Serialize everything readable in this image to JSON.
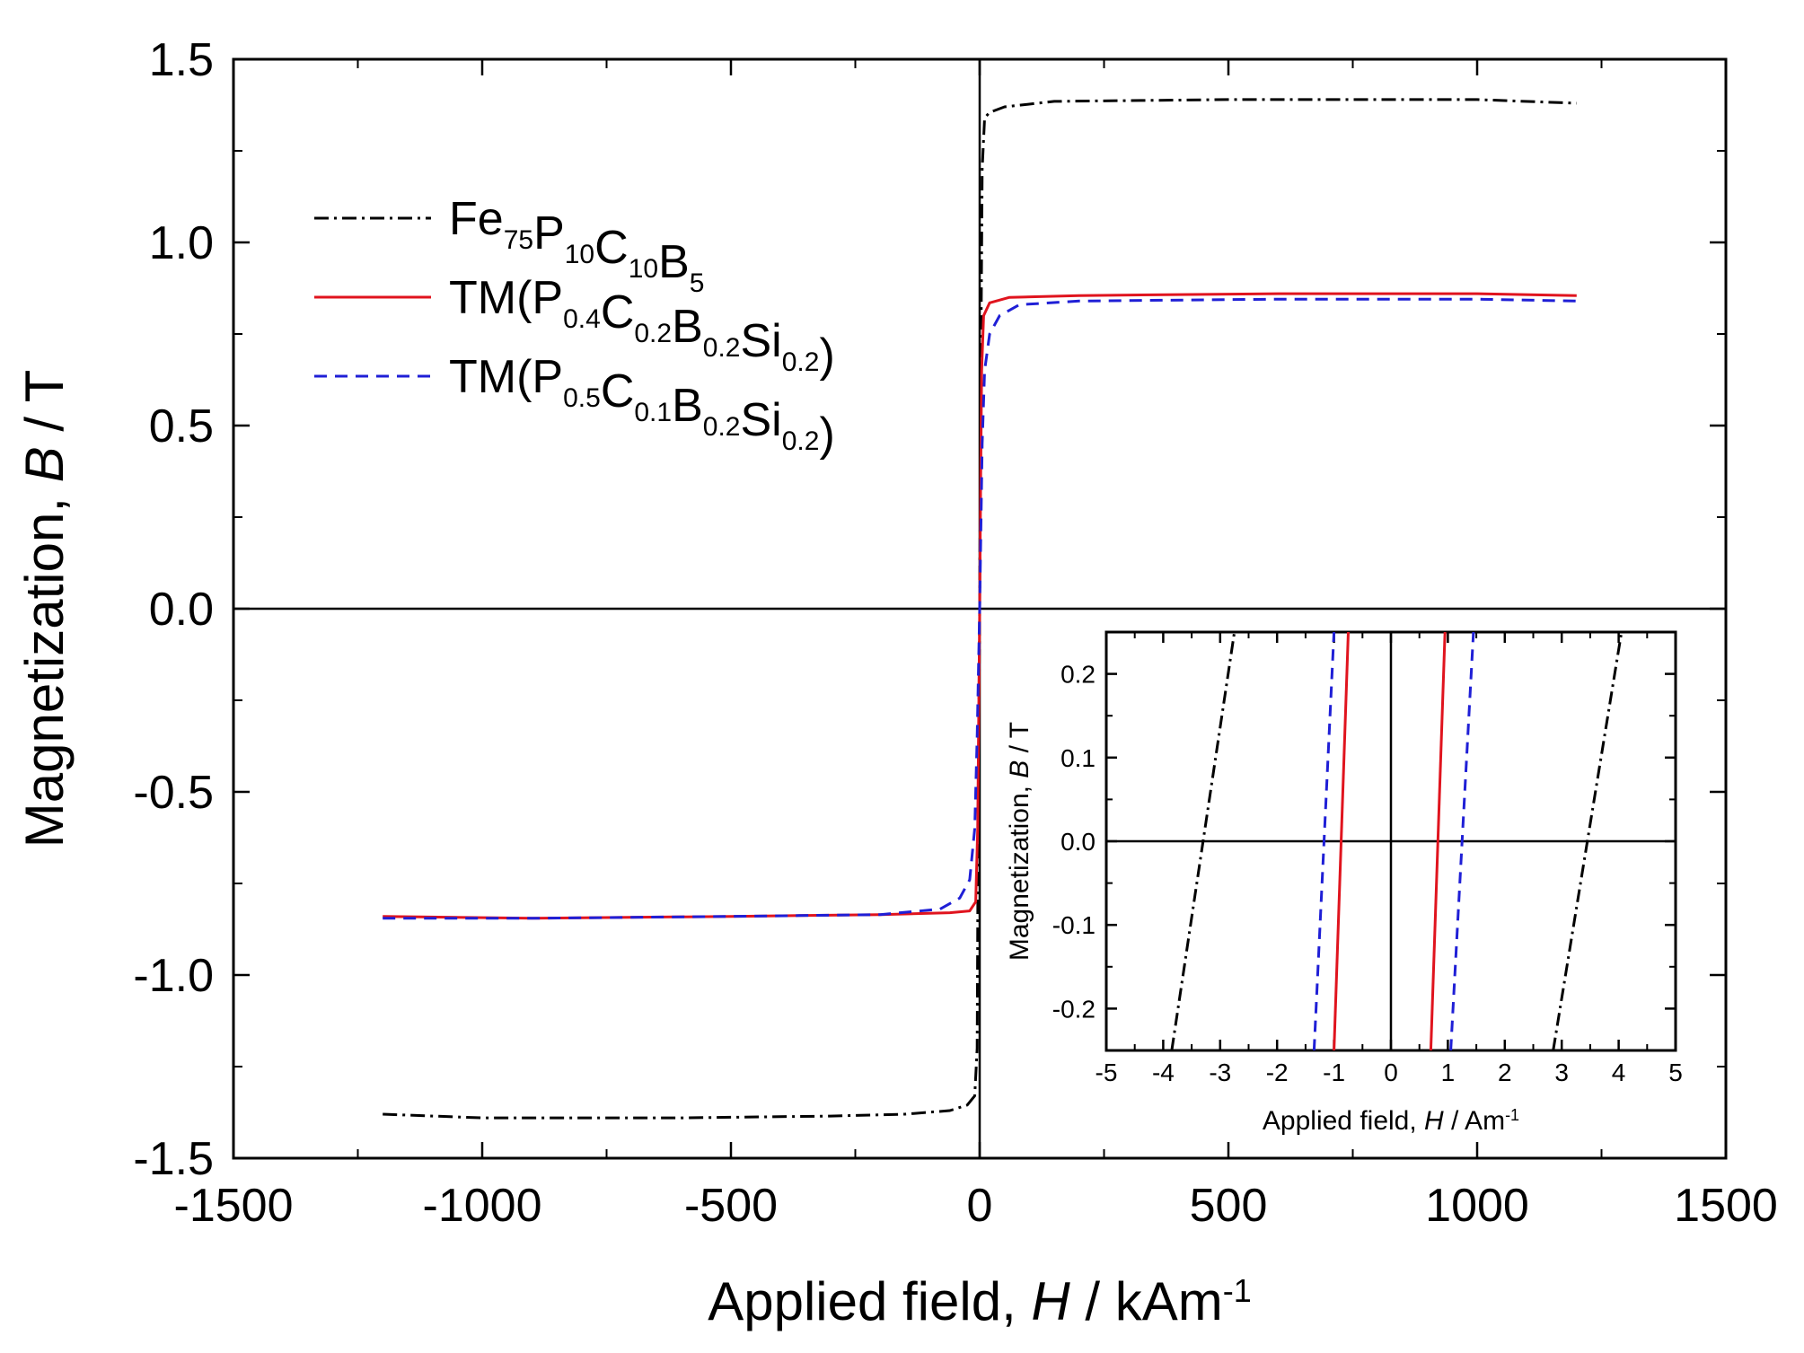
{
  "chart_data": [
    {
      "type": "line",
      "name": "main-hysteresis",
      "xlabel": {
        "prefix": "Applied field, ",
        "italic": "H",
        "suffix": " / kAm",
        "sup": "-1"
      },
      "ylabel": {
        "prefix": "Magnetization, ",
        "italic": "B",
        "suffix": " / T"
      },
      "xlim": [
        -1500,
        1500
      ],
      "ylim": [
        -1.5,
        1.5
      ],
      "x_ticks": [
        -1500,
        -1000,
        -500,
        0,
        500,
        1000,
        1500
      ],
      "x_tick_labels": [
        "-1500",
        "-1000",
        "-500",
        "0",
        "500",
        "1000",
        "1500"
      ],
      "y_ticks": [
        -1.5,
        -1.0,
        -0.5,
        0.0,
        0.5,
        1.0,
        1.5
      ],
      "y_tick_labels": [
        "-1.5",
        "-1.0",
        "-0.5",
        "0.0",
        "0.5",
        "1.0",
        "1.5"
      ],
      "legend_position": "upper-left",
      "series": [
        {
          "name": "Fe75P10C10B5",
          "legend": [
            {
              "t": "Fe"
            },
            {
              "t": "75",
              "sub": true
            },
            {
              "t": "P"
            },
            {
              "t": "10",
              "sub": true
            },
            {
              "t": "C"
            },
            {
              "t": "10",
              "sub": true
            },
            {
              "t": "B"
            },
            {
              "t": "5",
              "sub": true
            }
          ],
          "color": "#000000",
          "dash": "dashdot",
          "points": [
            [
              -1200,
              -1.38
            ],
            [
              -1000,
              -1.39
            ],
            [
              -600,
              -1.39
            ],
            [
              -300,
              -1.385
            ],
            [
              -150,
              -1.38
            ],
            [
              -60,
              -1.37
            ],
            [
              -25,
              -1.355
            ],
            [
              -10,
              -1.33
            ],
            [
              -5,
              -1.2
            ],
            [
              -3,
              -0.6
            ],
            [
              0,
              0.0
            ],
            [
              3,
              0.8
            ],
            [
              5,
              1.2
            ],
            [
              10,
              1.34
            ],
            [
              20,
              1.355
            ],
            [
              50,
              1.37
            ],
            [
              150,
              1.385
            ],
            [
              500,
              1.39
            ],
            [
              1000,
              1.39
            ],
            [
              1200,
              1.38
            ]
          ]
        },
        {
          "name": "TM(P0.4C0.2B0.2Si0.2)",
          "legend": [
            {
              "t": "TM(P"
            },
            {
              "t": "0.4",
              "sub": true
            },
            {
              "t": "C"
            },
            {
              "t": "0.2",
              "sub": true
            },
            {
              "t": "B"
            },
            {
              "t": "0.2",
              "sub": true
            },
            {
              "t": "Si"
            },
            {
              "t": "0.2",
              "sub": true
            },
            {
              "t": ")"
            }
          ],
          "color": "#e0141e",
          "dash": "solid",
          "points": [
            [
              -1200,
              -0.84
            ],
            [
              -900,
              -0.845
            ],
            [
              -500,
              -0.84
            ],
            [
              -200,
              -0.835
            ],
            [
              -60,
              -0.83
            ],
            [
              -20,
              -0.825
            ],
            [
              -8,
              -0.8
            ],
            [
              -4,
              -0.6
            ],
            [
              -2,
              -0.3
            ],
            [
              0,
              0.0
            ],
            [
              2,
              0.35
            ],
            [
              4,
              0.65
            ],
            [
              8,
              0.8
            ],
            [
              20,
              0.835
            ],
            [
              60,
              0.85
            ],
            [
              200,
              0.855
            ],
            [
              600,
              0.86
            ],
            [
              1000,
              0.86
            ],
            [
              1200,
              0.855
            ]
          ]
        },
        {
          "name": "TM(P0.5C0.1B0.2Si0.2)",
          "legend": [
            {
              "t": "TM(P"
            },
            {
              "t": "0.5",
              "sub": true
            },
            {
              "t": "C"
            },
            {
              "t": "0.1",
              "sub": true
            },
            {
              "t": "B"
            },
            {
              "t": "0.2",
              "sub": true
            },
            {
              "t": "Si"
            },
            {
              "t": "0.2",
              "sub": true
            },
            {
              "t": ")"
            }
          ],
          "color": "#1f1fd6",
          "dash": "dashed",
          "points": [
            [
              -1200,
              -0.845
            ],
            [
              -900,
              -0.845
            ],
            [
              -500,
              -0.84
            ],
            [
              -200,
              -0.835
            ],
            [
              -80,
              -0.82
            ],
            [
              -40,
              -0.79
            ],
            [
              -20,
              -0.74
            ],
            [
              -10,
              -0.6
            ],
            [
              -5,
              -0.35
            ],
            [
              0,
              0.0
            ],
            [
              5,
              0.45
            ],
            [
              10,
              0.65
            ],
            [
              20,
              0.75
            ],
            [
              40,
              0.8
            ],
            [
              80,
              0.83
            ],
            [
              200,
              0.84
            ],
            [
              600,
              0.845
            ],
            [
              1000,
              0.845
            ],
            [
              1200,
              0.84
            ]
          ]
        }
      ]
    },
    {
      "type": "line",
      "name": "inset-zoom",
      "xlabel": {
        "prefix": "Applied field, ",
        "italic": "H",
        "suffix": " / Am",
        "sup": "-1"
      },
      "ylabel": {
        "prefix": "Magnetization, ",
        "italic": "B",
        "suffix": " / T"
      },
      "xlim": [
        -5,
        5
      ],
      "ylim": [
        -0.25,
        0.25
      ],
      "x_ticks": [
        -5,
        -4,
        -3,
        -2,
        -1,
        0,
        1,
        2,
        3,
        4,
        5
      ],
      "x_tick_labels": [
        "-5",
        "-4",
        "-3",
        "-2",
        "-1",
        "0",
        "1",
        "2",
        "3",
        "4",
        "5"
      ],
      "y_ticks": [
        -0.2,
        -0.1,
        0.0,
        0.1,
        0.2
      ],
      "y_tick_labels": [
        "-0.2",
        "-0.1",
        "0.0",
        "0.1",
        "0.2"
      ],
      "series": [
        {
          "name": "Fe75P10C10B5 descending",
          "color": "#000000",
          "dash": "dashdot",
          "points": [
            [
              -3.85,
              -0.25
            ],
            [
              -2.75,
              0.25
            ]
          ]
        },
        {
          "name": "Fe75P10C10B5 ascending",
          "color": "#000000",
          "dash": "dashdot",
          "points": [
            [
              2.85,
              -0.25
            ],
            [
              4.05,
              0.25
            ]
          ]
        },
        {
          "name": "TM(P0.4C0.2B0.2Si0.2) descending",
          "color": "#e0141e",
          "dash": "solid",
          "points": [
            [
              -1.0,
              -0.25
            ],
            [
              -0.75,
              0.25
            ]
          ]
        },
        {
          "name": "TM(P0.4C0.2B0.2Si0.2) ascending",
          "color": "#e0141e",
          "dash": "solid",
          "points": [
            [
              0.7,
              -0.25
            ],
            [
              0.95,
              0.25
            ]
          ]
        },
        {
          "name": "TM(P0.5C0.1B0.2Si0.2) descending",
          "color": "#1f1fd6",
          "dash": "dashed",
          "points": [
            [
              -1.35,
              -0.25
            ],
            [
              -1.0,
              0.25
            ]
          ]
        },
        {
          "name": "TM(P0.5C0.1B0.2Si0.2) ascending",
          "color": "#1f1fd6",
          "dash": "dashed",
          "points": [
            [
              1.05,
              -0.25
            ],
            [
              1.45,
              0.25
            ]
          ]
        }
      ]
    }
  ]
}
